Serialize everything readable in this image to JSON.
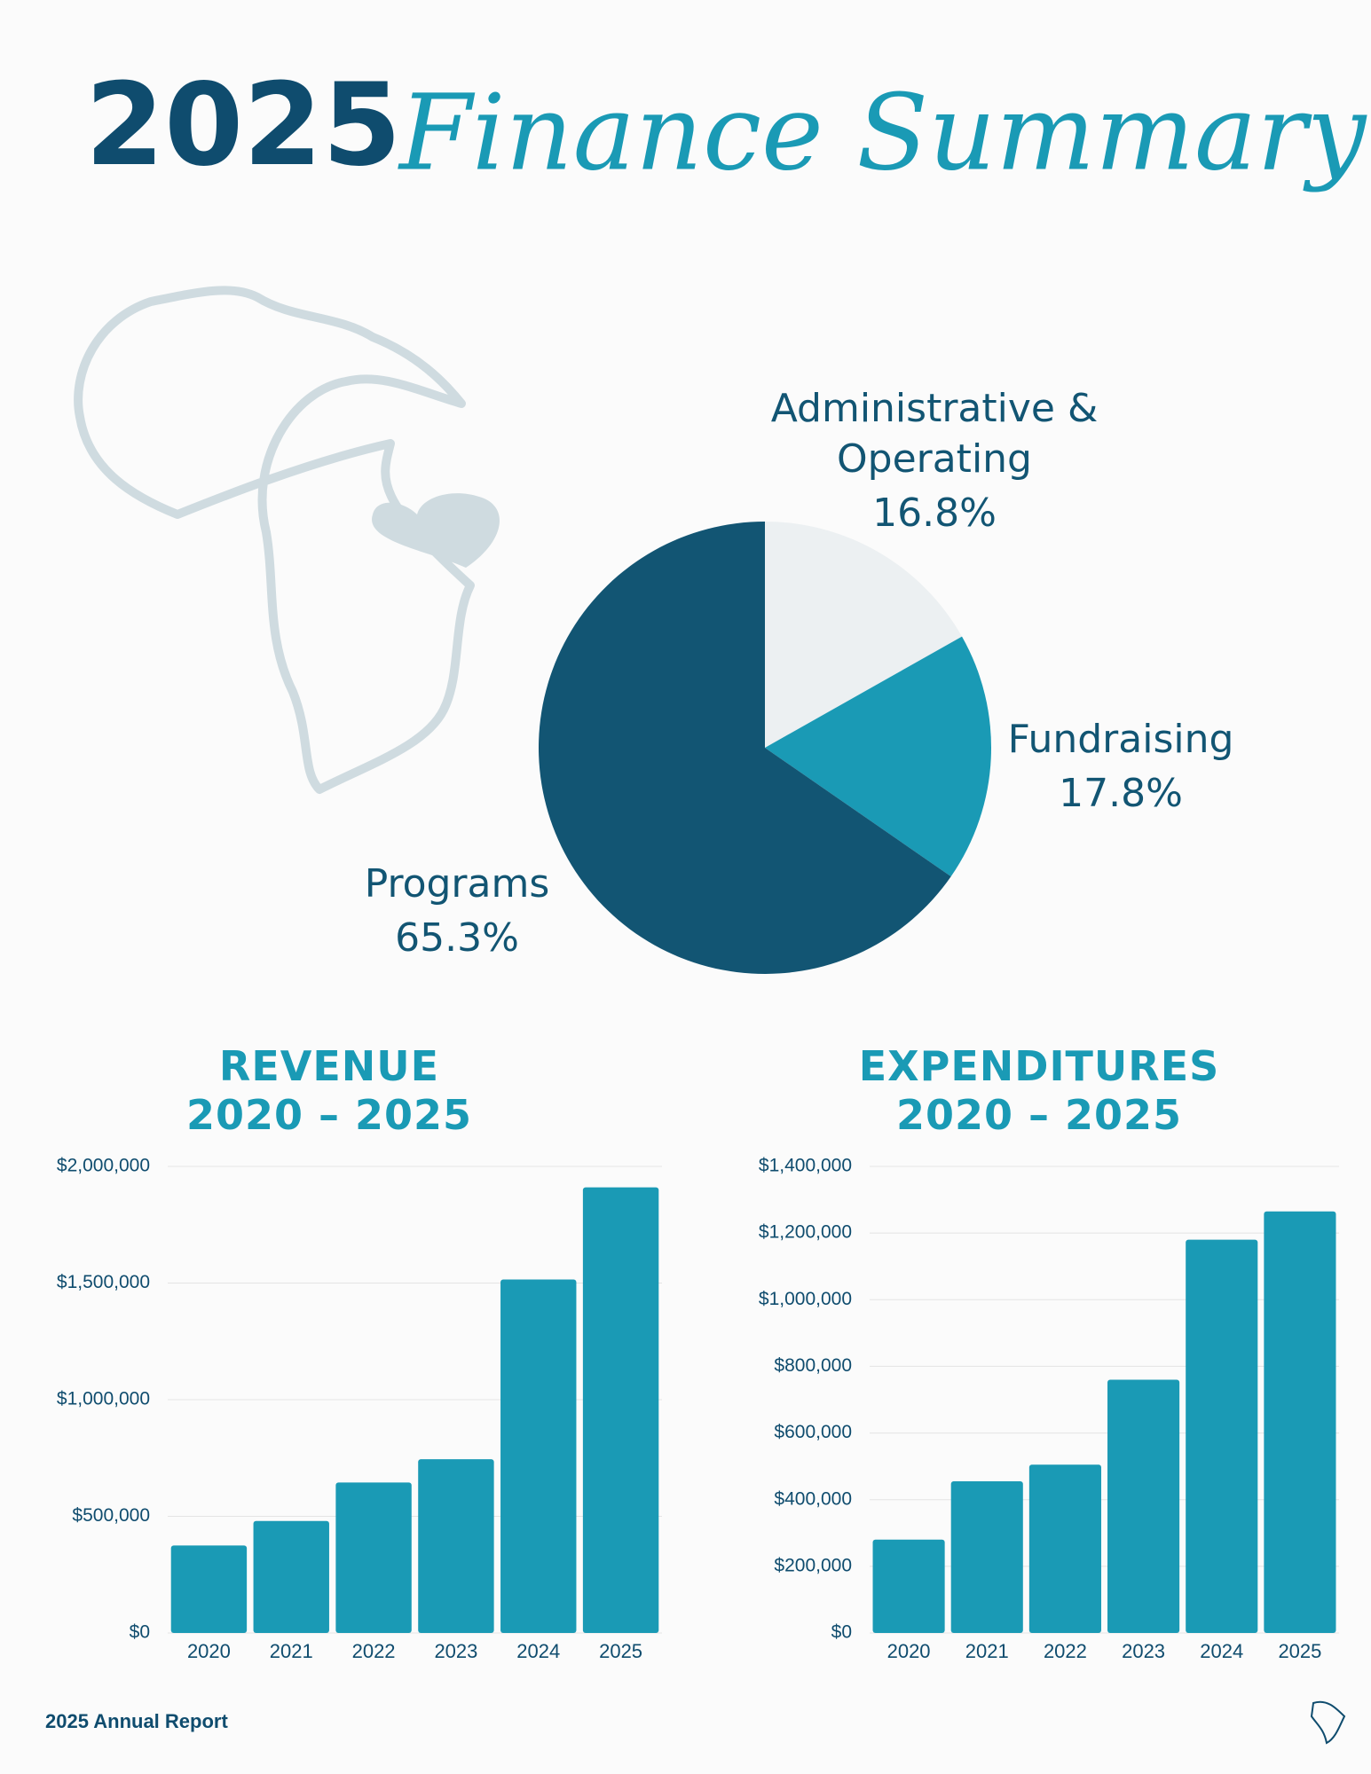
{
  "header": {
    "year": "2025",
    "title": "Finance Summary"
  },
  "footer": {
    "text": "2025 Annual Report"
  },
  "chart_data": [
    {
      "type": "pie",
      "categories": [
        "Administrative & Operating",
        "Fundraising",
        "Programs"
      ],
      "values": [
        16.8,
        17.8,
        65.3
      ],
      "value_labels": [
        "16.8%",
        "17.8%",
        "65.3%"
      ],
      "colors": [
        "#ecf0f2",
        "#1a9ab5",
        "#125573"
      ]
    },
    {
      "type": "bar",
      "title": "REVENUE",
      "subtitle": "2020 – 2025",
      "categories": [
        "2020",
        "2021",
        "2022",
        "2023",
        "2024",
        "2025"
      ],
      "values": [
        375000,
        480000,
        645000,
        745000,
        1515000,
        1910000
      ],
      "color": "#1a9ab5",
      "ylim": [
        0,
        2000000
      ],
      "yticks": [
        {
          "value": 0,
          "label": "$0"
        },
        {
          "value": 500000,
          "label": "$500,000"
        },
        {
          "value": 1000000,
          "label": "$1,000,000"
        },
        {
          "value": 1500000,
          "label": "$1,500,000"
        },
        {
          "value": 2000000,
          "label": "$2,000,000"
        }
      ],
      "grid": true
    },
    {
      "type": "bar",
      "title": "EXPENDITURES",
      "subtitle": "2020 – 2025",
      "categories": [
        "2020",
        "2021",
        "2022",
        "2023",
        "2024",
        "2025"
      ],
      "values": [
        280000,
        455000,
        505000,
        760000,
        1180000,
        1265000
      ],
      "color": "#1a9ab5",
      "ylim": [
        0,
        1400000
      ],
      "yticks": [
        {
          "value": 0,
          "label": "$0"
        },
        {
          "value": 200000,
          "label": "$200,000"
        },
        {
          "value": 400000,
          "label": "$400,000"
        },
        {
          "value": 600000,
          "label": "$600,000"
        },
        {
          "value": 800000,
          "label": "$800,000"
        },
        {
          "value": 1000000,
          "label": "$1,000,000"
        },
        {
          "value": 1200000,
          "label": "$1,200,000"
        },
        {
          "value": 1400000,
          "label": "$1,400,000"
        }
      ],
      "grid": true
    }
  ]
}
